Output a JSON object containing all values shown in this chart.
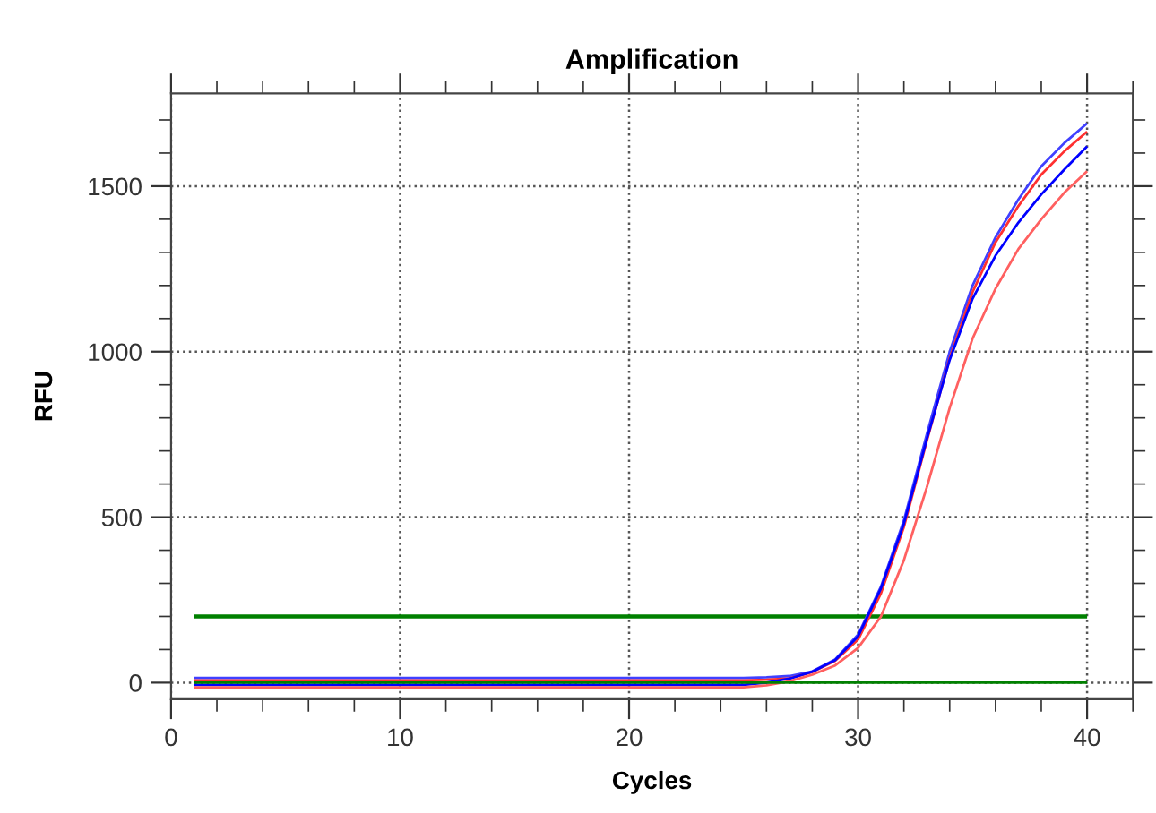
{
  "chart_data": {
    "type": "line",
    "title": "Amplification",
    "xlabel": "Cycles",
    "ylabel": "RFU",
    "x": [
      1,
      2,
      3,
      4,
      5,
      6,
      7,
      8,
      9,
      10,
      11,
      12,
      13,
      14,
      15,
      16,
      17,
      18,
      19,
      20,
      21,
      22,
      23,
      24,
      25,
      26,
      27,
      28,
      29,
      30,
      31,
      32,
      33,
      34,
      35,
      36,
      37,
      38,
      39,
      40
    ],
    "series": [
      {
        "color": "#4040ff",
        "values": [
          14,
          14,
          14,
          14,
          14,
          14,
          14,
          14,
          14,
          14,
          14,
          14,
          14,
          14,
          14,
          14,
          14,
          14,
          14,
          14,
          14,
          14,
          14,
          14,
          14,
          16,
          20,
          34,
          70,
          145,
          290,
          490,
          750,
          1000,
          1200,
          1345,
          1460,
          1560,
          1630,
          1690
        ]
      },
      {
        "color": "#ff3030",
        "values": [
          7,
          7,
          7,
          7,
          7,
          7,
          7,
          7,
          7,
          7,
          7,
          7,
          7,
          7,
          7,
          7,
          7,
          7,
          7,
          7,
          7,
          7,
          7,
          7,
          7,
          9,
          13,
          32,
          66,
          130,
          270,
          470,
          730,
          980,
          1180,
          1330,
          1440,
          1535,
          1605,
          1665
        ]
      },
      {
        "color": "#0000ff",
        "values": [
          -7,
          -7,
          -7,
          -7,
          -7,
          -7,
          -7,
          -7,
          -7,
          -7,
          -7,
          -7,
          -7,
          -7,
          -7,
          -7,
          -7,
          -7,
          -7,
          -7,
          -7,
          -7,
          -7,
          -7,
          -7,
          0,
          12,
          33,
          68,
          140,
          285,
          480,
          735,
          975,
          1160,
          1290,
          1390,
          1475,
          1550,
          1620
        ]
      },
      {
        "color": "#ff6060",
        "values": [
          -14,
          -14,
          -14,
          -14,
          -14,
          -14,
          -14,
          -14,
          -14,
          -14,
          -14,
          -14,
          -14,
          -14,
          -14,
          -14,
          -14,
          -14,
          -14,
          -14,
          -14,
          -14,
          -14,
          -14,
          -14,
          -8,
          4,
          24,
          52,
          105,
          200,
          370,
          590,
          830,
          1040,
          1190,
          1310,
          1400,
          1480,
          1545
        ]
      },
      {
        "color": "#008000",
        "values": [
          0,
          0,
          0,
          0,
          0,
          0,
          0,
          0,
          0,
          0,
          0,
          0,
          0,
          0,
          0,
          0,
          0,
          0,
          0,
          0,
          0,
          0,
          0,
          0,
          0,
          0,
          0,
          0,
          0,
          0,
          0,
          0,
          0,
          0,
          0,
          0,
          0,
          0,
          0,
          0
        ]
      }
    ],
    "ref_lines": [
      {
        "axis": "y",
        "value": 200,
        "color": "#008000"
      }
    ],
    "xlim": [
      0,
      42
    ],
    "ylim": [
      -50,
      1780
    ],
    "xticks": [
      0,
      10,
      20,
      30,
      40
    ],
    "yticks": [
      0,
      500,
      1000,
      1500
    ],
    "grid": true,
    "line_style": "solid",
    "marker": "none"
  }
}
